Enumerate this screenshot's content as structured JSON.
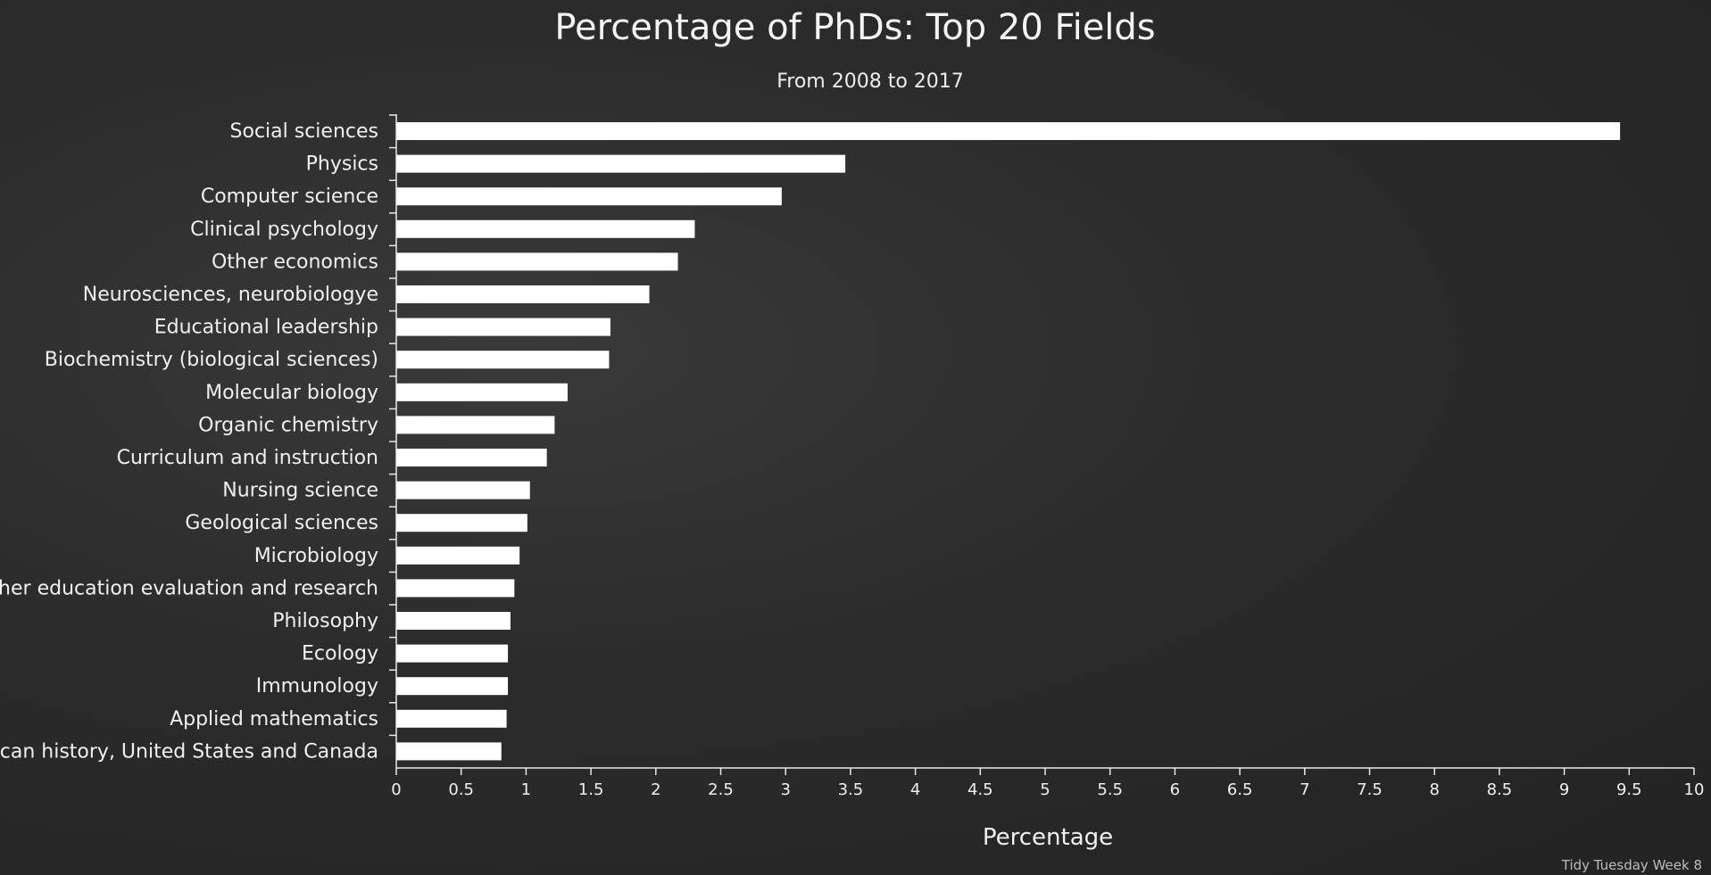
{
  "chart_data": {
    "type": "bar",
    "orientation": "horizontal",
    "title": "Percentage of PhDs: Top 20 Fields",
    "subtitle": "From 2008 to 2017",
    "xlabel": "Percentage",
    "ylabel": "",
    "xlim": [
      0,
      10
    ],
    "xticks": [
      "0",
      "0.5",
      "1",
      "1.5",
      "2",
      "2.5",
      "3",
      "3.5",
      "4",
      "4.5",
      "5",
      "5.5",
      "6",
      "6.5",
      "7",
      "7.5",
      "8",
      "8.5",
      "9",
      "9.5",
      "10"
    ],
    "grid": false,
    "legend": "none",
    "categories": [
      "Social sciences",
      "Physics",
      "Computer science",
      "Clinical psychology",
      "Other economics",
      "Neurosciences, neurobiologye",
      "Educational leadership",
      "Biochemistry (biological sciences)",
      "Molecular biology",
      "Organic chemistry",
      "Curriculum and instruction",
      "Nursing science",
      "Geological sciences",
      "Microbiology",
      "Higher education evaluation and research",
      "Philosophy",
      "Ecology",
      "Immunology",
      "Applied mathematics",
      "American history, United States and Canada"
    ],
    "values": [
      9.43,
      3.46,
      2.97,
      2.3,
      2.17,
      1.95,
      1.65,
      1.64,
      1.32,
      1.22,
      1.16,
      1.03,
      1.01,
      0.95,
      0.91,
      0.88,
      0.86,
      0.86,
      0.85,
      0.81
    ],
    "bar_color": "#ffffff"
  },
  "footer": {
    "credit": "Tidy Tuesday Week 8"
  },
  "colors": {
    "background": "#2b2b2b",
    "text": "#f2f2f2"
  }
}
